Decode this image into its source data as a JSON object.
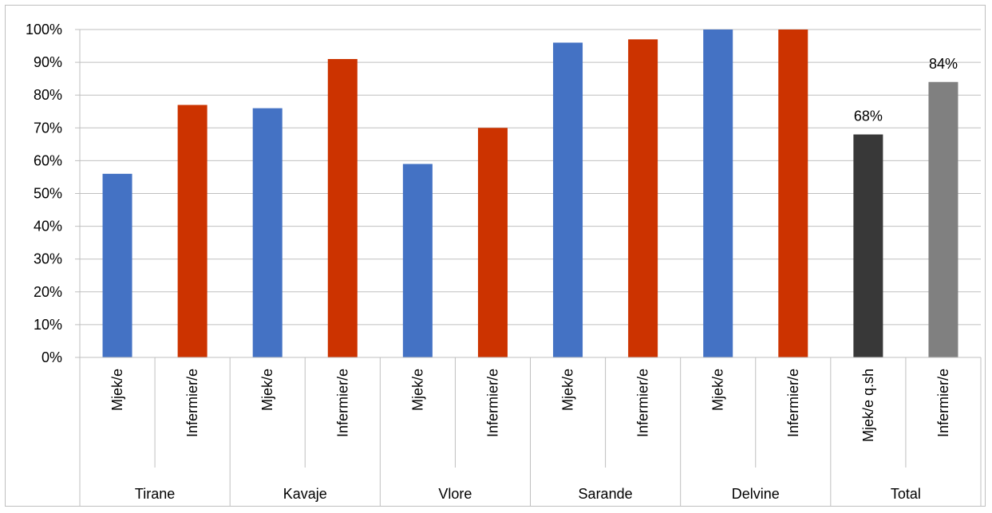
{
  "chart_data": {
    "type": "bar",
    "ylim": [
      0,
      100
    ],
    "yticks": [
      "0%",
      "10%",
      "20%",
      "30%",
      "40%",
      "50%",
      "60%",
      "70%",
      "80%",
      "90%",
      "100%"
    ],
    "grid": true,
    "groups": [
      {
        "name": "Tirane",
        "bars": [
          {
            "label": "Mjek/e",
            "value": 56,
            "color": "#4472c4"
          },
          {
            "label": "Infermier/e",
            "value": 77,
            "color": "#cc3300"
          }
        ]
      },
      {
        "name": "Kavaje",
        "bars": [
          {
            "label": "Mjek/e",
            "value": 76,
            "color": "#4472c4"
          },
          {
            "label": "Infermier/e",
            "value": 91,
            "color": "#cc3300"
          }
        ]
      },
      {
        "name": "Vlore",
        "bars": [
          {
            "label": "Mjek/e",
            "value": 59,
            "color": "#4472c4"
          },
          {
            "label": "Infermier/e",
            "value": 70,
            "color": "#cc3300"
          }
        ]
      },
      {
        "name": "Sarande",
        "bars": [
          {
            "label": "Mjek/e",
            "value": 96,
            "color": "#4472c4"
          },
          {
            "label": "Infermier/e",
            "value": 97,
            "color": "#cc3300"
          }
        ]
      },
      {
        "name": "Delvine",
        "bars": [
          {
            "label": "Mjek/e",
            "value": 100,
            "color": "#4472c4"
          },
          {
            "label": "Infermier/e",
            "value": 100,
            "color": "#cc3300"
          }
        ]
      },
      {
        "name": "Total",
        "bars": [
          {
            "label": "Mjek/e q.sh",
            "value": 68,
            "color": "#383838",
            "data_label": "68%"
          },
          {
            "label": "Infermier/e",
            "value": 84,
            "color": "#808080",
            "data_label": "84%"
          }
        ]
      }
    ],
    "colors": {
      "gridline": "#bfbfbf",
      "axis": "#bfbfbf"
    }
  }
}
